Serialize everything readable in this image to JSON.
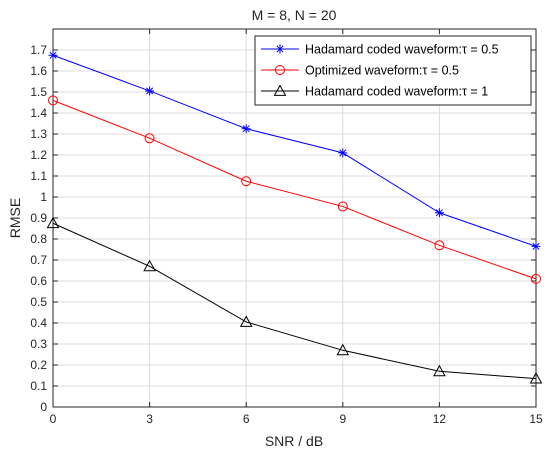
{
  "chart_data": {
    "type": "line",
    "title": "M = 8, N = 20",
    "xlabel": "SNR / dB",
    "ylabel": "RMSE",
    "xlim": [
      0,
      15
    ],
    "ylim": [
      0,
      1.8
    ],
    "xticks": [
      0,
      3,
      6,
      9,
      12,
      15
    ],
    "yticks": [
      0,
      0.1,
      0.2,
      0.3,
      0.4,
      0.5,
      0.6,
      0.7,
      0.8,
      0.9,
      1,
      1.1,
      1.2,
      1.3,
      1.4,
      1.5,
      1.6,
      1.7
    ],
    "grid": true,
    "legend_position": "top-right",
    "x": [
      0,
      3,
      6,
      9,
      12,
      15
    ],
    "series": [
      {
        "name": "Hadamard coded waveform:τ = 0.5",
        "color": "#0000ff",
        "marker": "asterisk",
        "values": [
          1.675,
          1.505,
          1.325,
          1.21,
          0.925,
          0.765
        ]
      },
      {
        "name": "Optimized waveform:τ = 0.5",
        "color": "#ff0000",
        "marker": "circle",
        "values": [
          1.46,
          1.28,
          1.075,
          0.955,
          0.77,
          0.61
        ]
      },
      {
        "name": "Hadamard coded waveform:τ = 1",
        "color": "#000000",
        "marker": "triangle",
        "values": [
          0.875,
          0.67,
          0.405,
          0.27,
          0.17,
          0.135
        ]
      }
    ]
  }
}
